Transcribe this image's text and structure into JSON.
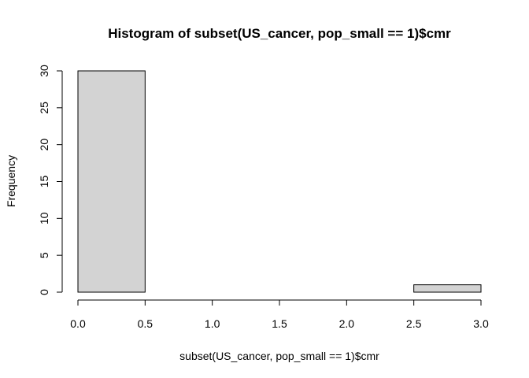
{
  "chart_data": {
    "type": "bar",
    "title": "Histogram of subset(US_cancer, pop_small == 1)$cmr",
    "xlabel": "subset(US_cancer, pop_small == 1)$cmr",
    "ylabel": "Frequency",
    "bins": [
      {
        "from": 0.0,
        "to": 0.5,
        "count": 30
      },
      {
        "from": 0.5,
        "to": 1.0,
        "count": 0
      },
      {
        "from": 1.0,
        "to": 1.5,
        "count": 0
      },
      {
        "from": 1.5,
        "to": 2.0,
        "count": 0
      },
      {
        "from": 2.0,
        "to": 2.5,
        "count": 0
      },
      {
        "from": 2.5,
        "to": 3.0,
        "count": 1
      }
    ],
    "xlim": [
      0,
      3
    ],
    "ylim": [
      0,
      30
    ],
    "x_ticks": [
      "0.0",
      "0.5",
      "1.0",
      "1.5",
      "2.0",
      "2.5",
      "3.0"
    ],
    "y_ticks": [
      "0",
      "5",
      "10",
      "15",
      "20",
      "25",
      "30"
    ],
    "bar_fill": "#d3d3d3",
    "grid": false
  }
}
